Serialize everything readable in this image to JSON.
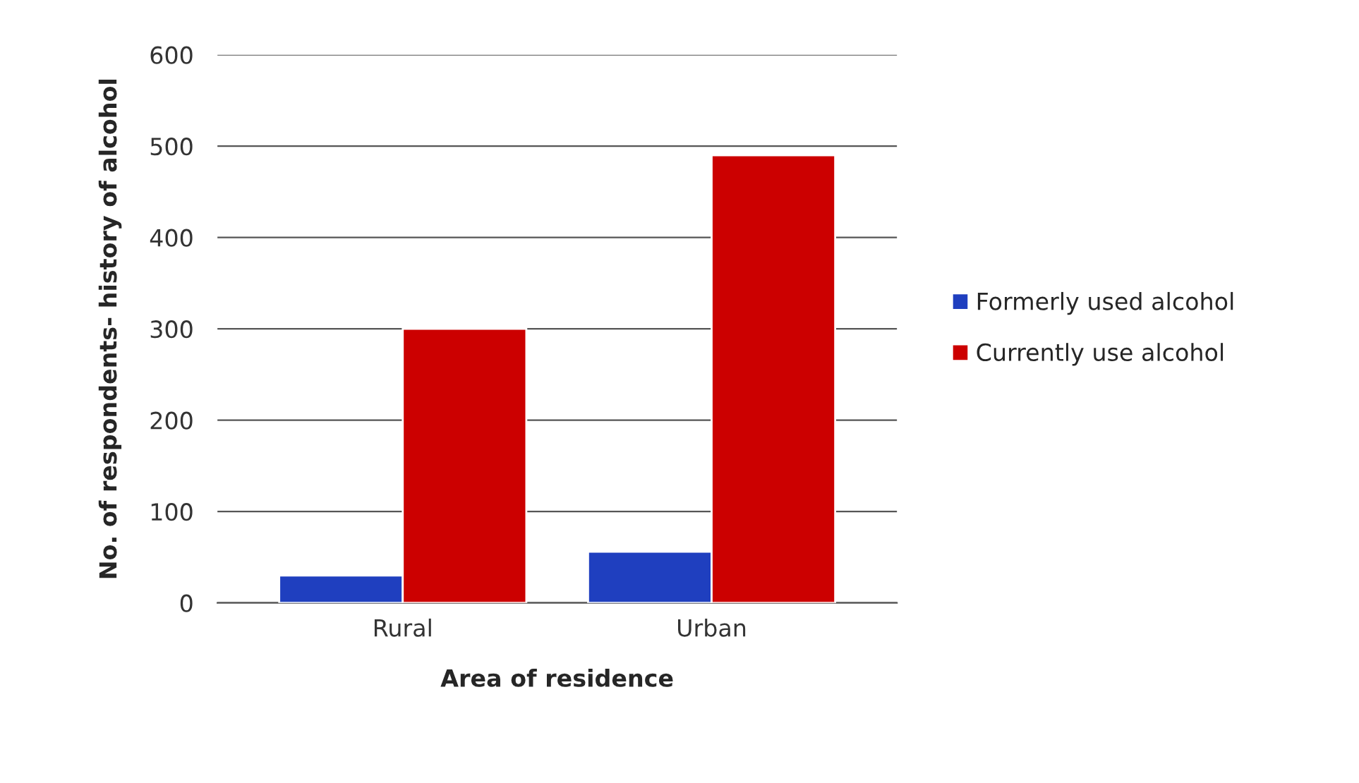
{
  "chart_data": {
    "type": "bar",
    "xlabel": "Area of residence",
    "ylabel": "No. of respondents- history of alcohol",
    "categories": [
      "Rural",
      "Urban"
    ],
    "series": [
      {
        "name": "Formerly used alcohol",
        "color": "#1f3fbf",
        "values": [
          30,
          56
        ]
      },
      {
        "name": "Currently use alcohol",
        "color": "#cc0000",
        "values": [
          300,
          490
        ]
      }
    ],
    "ylim": [
      0,
      600
    ],
    "yticks": [
      0,
      100,
      200,
      300,
      400,
      500,
      600
    ],
    "grid": "y",
    "legend": "right"
  }
}
